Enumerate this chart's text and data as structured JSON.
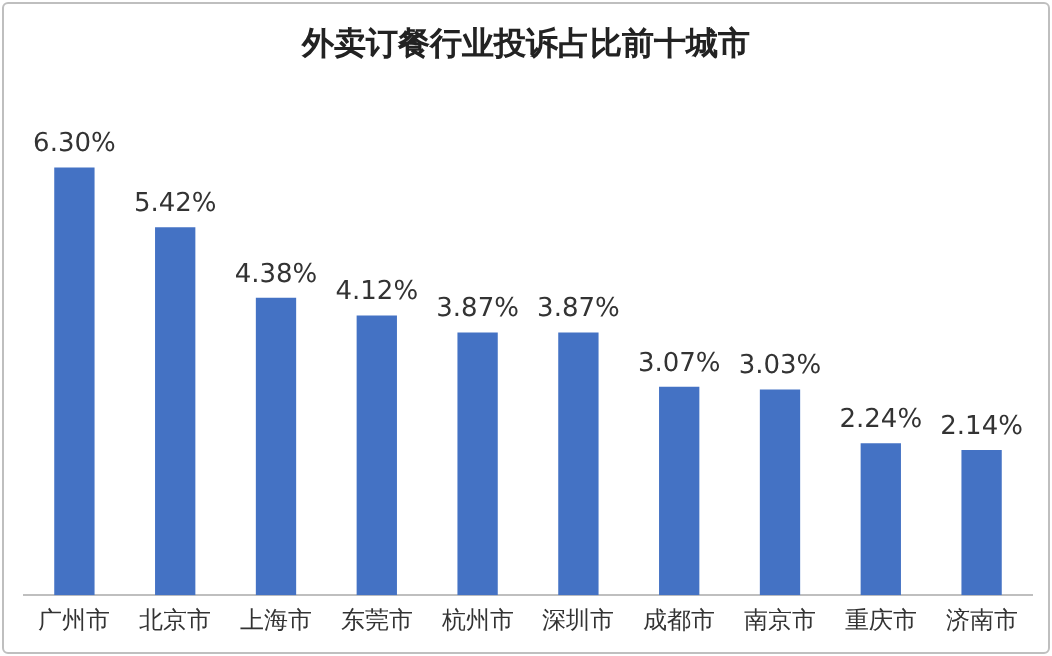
{
  "chart_data": {
    "type": "bar",
    "title": "外卖订餐行业投诉占比前十城市",
    "categories": [
      "广州市",
      "北京市",
      "上海市",
      "东莞市",
      "杭州市",
      "深圳市",
      "成都市",
      "南京市",
      "重庆市",
      "济南市"
    ],
    "values": [
      6.3,
      5.42,
      4.38,
      4.12,
      3.87,
      3.87,
      3.07,
      3.03,
      2.24,
      2.14
    ],
    "value_labels": [
      "6.30%",
      "5.42%",
      "4.38%",
      "4.12%",
      "3.87%",
      "3.87%",
      "3.07%",
      "3.03%",
      "2.24%",
      "2.14%"
    ],
    "color": "#4472c4",
    "grid": false,
    "legend": false,
    "tick_labels": "x"
  }
}
